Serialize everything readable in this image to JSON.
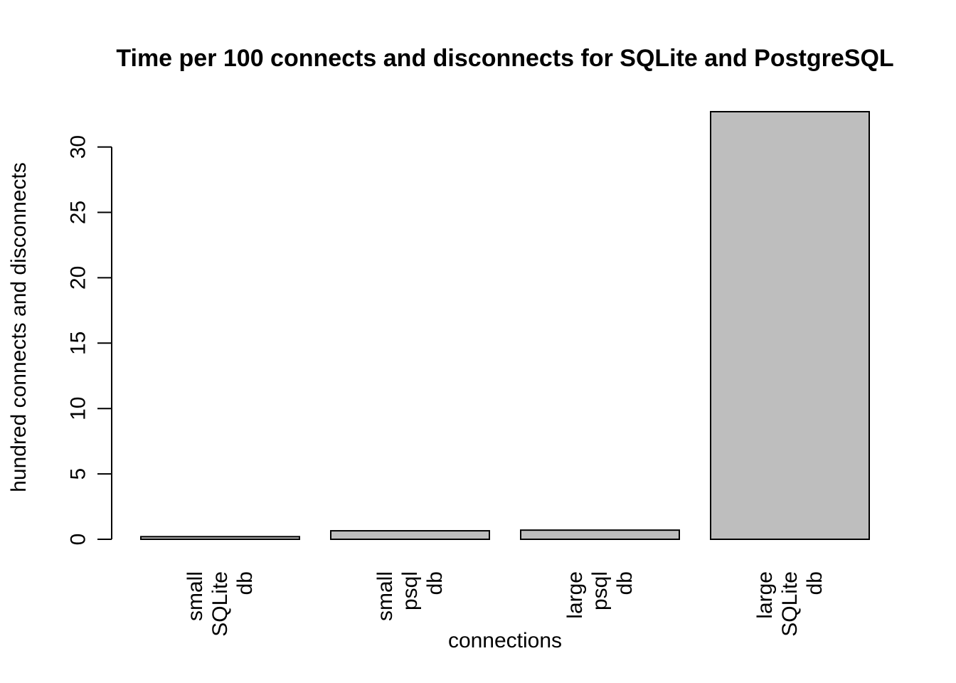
{
  "chart_data": {
    "type": "bar",
    "title": "Time per 100 connects and disconnects for SQLite and PostgreSQL",
    "xlabel": "connections",
    "ylabel": "hundred connects and disconnects",
    "categories": [
      [
        "small",
        "SQLite",
        "db"
      ],
      [
        "small",
        "psql",
        "db"
      ],
      [
        "large",
        "psql",
        "db"
      ],
      [
        "large",
        "SQLite",
        "db"
      ]
    ],
    "values": [
      0.2,
      0.65,
      0.7,
      32.7
    ],
    "yticks": [
      0,
      5,
      10,
      15,
      20,
      25,
      30
    ],
    "ylim": [
      0,
      32.7
    ],
    "grid": false,
    "legend": "none",
    "bar_color": "#bebebe",
    "edge_color": "#000000"
  }
}
